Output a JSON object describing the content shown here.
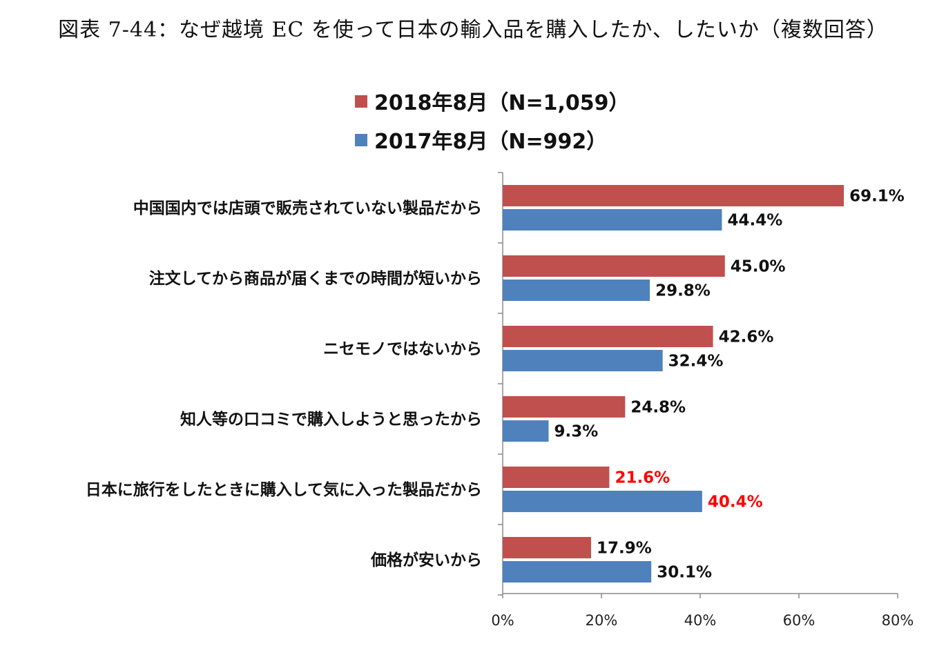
{
  "figure_title": "図表 7-44：なぜ越境 EC を使って日本の輸入品を購入したか、したいか（複数回答）",
  "chart_data": {
    "type": "bar",
    "orientation": "horizontal",
    "title": "図表 7-44：なぜ越境 EC を使って日本の輸入品を購入したか、したいか（複数回答）",
    "categories": [
      "中国国内では店頭で販売されていない製品だから",
      "注文してから商品が届くまでの時間が短いから",
      "ニセモノではないから",
      "知人等の口コミで購入しようと思ったから",
      "日本に旅行をしたときに購入して気に入った製品だから",
      "価格が安いから"
    ],
    "series": [
      {
        "name": "2018年8月（N=1,059）",
        "color": "#c0504d",
        "values": [
          69.1,
          45.0,
          42.6,
          24.8,
          21.6,
          17.9
        ],
        "labels": [
          "69.1%",
          "45.0%",
          "42.6%",
          "24.8%",
          "21.6%",
          "17.9%"
        ]
      },
      {
        "name": "2017年8月（N=992）",
        "color": "#4f81bd",
        "values": [
          44.4,
          29.8,
          32.4,
          9.3,
          40.4,
          30.1
        ],
        "labels": [
          "44.4%",
          "29.8%",
          "32.4%",
          "9.3%",
          "40.4%",
          "30.1%"
        ]
      }
    ],
    "highlight_category_index": 4,
    "highlight_label_color": "#ff0000",
    "default_label_color": "#111111",
    "xlim": [
      0,
      80
    ],
    "xticks": [
      0,
      20,
      40,
      60,
      80
    ],
    "xtick_labels": [
      "0%",
      "20%",
      "40%",
      "60%",
      "80%"
    ],
    "legend_position": "top",
    "grid": false
  }
}
